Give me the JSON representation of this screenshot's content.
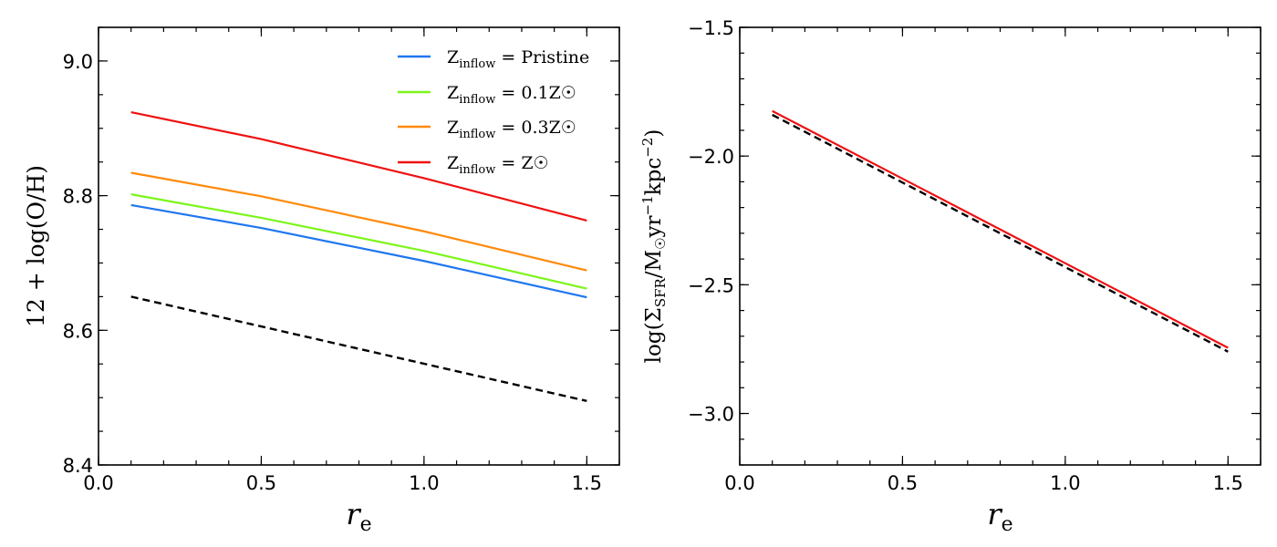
{
  "chart_data": [
    {
      "type": "line",
      "ylabel": "12 + log(O/H)",
      "xlabel_main": "r",
      "xlabel_sub": "e",
      "xlim": [
        0.0,
        1.6
      ],
      "ylim": [
        8.4,
        9.05
      ],
      "x_major_ticks": [
        0.0,
        0.5,
        1.0,
        1.5
      ],
      "x_tick_labels": [
        "0.0",
        "0.5",
        "1.0",
        "1.5"
      ],
      "y_major_ticks": [
        8.4,
        8.6,
        8.8,
        9.0
      ],
      "y_tick_labels": [
        "8.4",
        "8.6",
        "8.8",
        "9.0"
      ],
      "grid": false,
      "legend_placement": "top-right",
      "legend": [
        {
          "prefix": "Z",
          "sub": "inflow",
          "eq": " = ",
          "value": "Pristine",
          "color": "#1f77f0"
        },
        {
          "prefix": "Z",
          "sub": "inflow",
          "eq": " = ",
          "value": "0.1Z☉",
          "color": "#7cf51a"
        },
        {
          "prefix": "Z",
          "sub": "inflow",
          "eq": " = ",
          "value": "0.3Z☉",
          "color": "#ff8a0a"
        },
        {
          "prefix": "Z",
          "sub": "inflow",
          "eq": " = ",
          "value": "Z☉",
          "color": "#ee1111"
        }
      ],
      "series": [
        {
          "name": "Zinflow = Pristine",
          "color": "#1f77f0",
          "dashed": false,
          "x": [
            0.1,
            0.5,
            1.0,
            1.5
          ],
          "y": [
            8.786,
            8.752,
            8.703,
            8.649
          ]
        },
        {
          "name": "Zinflow = 0.1Z☉",
          "color": "#7cf51a",
          "dashed": false,
          "x": [
            0.1,
            0.5,
            1.0,
            1.5
          ],
          "y": [
            8.802,
            8.767,
            8.718,
            8.662
          ]
        },
        {
          "name": "Zinflow = 0.3Z☉",
          "color": "#ff8a0a",
          "dashed": false,
          "x": [
            0.1,
            0.5,
            1.0,
            1.5
          ],
          "y": [
            8.834,
            8.799,
            8.747,
            8.689
          ]
        },
        {
          "name": "Zinflow = Z☉",
          "color": "#ee1111",
          "dashed": false,
          "x": [
            0.1,
            0.5,
            1.0,
            1.5
          ],
          "y": [
            8.924,
            8.884,
            8.826,
            8.763
          ]
        },
        {
          "color": "#000000",
          "dashed": true,
          "x": [
            0.1,
            1.5
          ],
          "y": [
            8.65,
            8.495
          ]
        }
      ]
    },
    {
      "type": "line",
      "ylabel": "log(Σ_SFR/M☉yr⁻¹kpc⁻²)",
      "ylabel_parts": {
        "a": "log(Σ",
        "sub": "SFR",
        "b": "/M",
        "sub2": "☉",
        "c": "yr",
        "sup1": "−1",
        "d": "kpc",
        "sup2": "−2",
        "e": ")"
      },
      "xlabel_main": "r",
      "xlabel_sub": "e",
      "xlim": [
        0.0,
        1.6
      ],
      "ylim": [
        -3.2,
        -1.5
      ],
      "x_major_ticks": [
        0.0,
        0.5,
        1.0,
        1.5
      ],
      "x_tick_labels": [
        "0.0",
        "0.5",
        "1.0",
        "1.5"
      ],
      "y_major_ticks": [
        -3.0,
        -2.5,
        -2.0,
        -1.5
      ],
      "y_tick_labels": [
        "−3.0",
        "−2.5",
        "−2.0",
        "−1.5"
      ],
      "grid": false,
      "series": [
        {
          "color": "#000000",
          "dashed": true,
          "x": [
            0.1,
            1.5
          ],
          "y": [
            -1.84,
            -2.76
          ]
        },
        {
          "color": "#ee1111",
          "dashed": false,
          "x": [
            0.1,
            1.5
          ],
          "y": [
            -1.825,
            -2.745
          ]
        }
      ]
    }
  ]
}
